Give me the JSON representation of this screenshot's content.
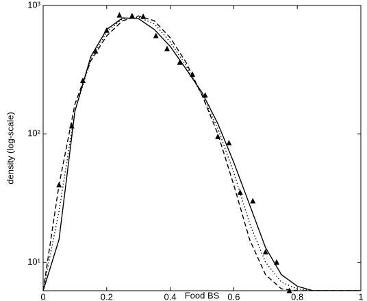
{
  "chart_data": {
    "type": "line",
    "xlabel": "Food BS",
    "ylabel": "density (log-scale)",
    "xlim": [
      0,
      1
    ],
    "xticks": [
      0,
      0.2,
      0.4,
      0.6,
      0.8,
      1
    ],
    "ylim": [
      6,
      1000
    ],
    "ylog": true,
    "yticks": [
      {
        "value": 10,
        "label": "10¹"
      },
      {
        "value": 100,
        "label": "10²"
      },
      {
        "value": 1000,
        "label": "10³"
      }
    ],
    "x": [
      0,
      0.05,
      0.1,
      0.15,
      0.2,
      0.25,
      0.3,
      0.35,
      0.4,
      0.45,
      0.5,
      0.55,
      0.6,
      0.65,
      0.7,
      0.75,
      0.8,
      0.85,
      0.9,
      0.95,
      1
    ],
    "series": [
      {
        "color": "#000000",
        "dash": "solid",
        "values": [
          6,
          15,
          150,
          400,
          650,
          800,
          790,
          650,
          480,
          320,
          210,
          120,
          60,
          28,
          13,
          8,
          6.5,
          6,
          6,
          6,
          6
        ]
      },
      {
        "color": "#000000",
        "dash": "dashed",
        "values": [
          6,
          40,
          170,
          370,
          580,
          760,
          830,
          760,
          560,
          360,
          200,
          100,
          40,
          15,
          8,
          6.2,
          6,
          6,
          6,
          6,
          6
        ]
      },
      {
        "color": "#000000",
        "dash": "dotted",
        "values": [
          6,
          25,
          150,
          380,
          620,
          790,
          810,
          720,
          520,
          340,
          200,
          110,
          50,
          20,
          10,
          7,
          6.2,
          6,
          6,
          6,
          6
        ]
      },
      {
        "type": "scatter",
        "color": "#000000",
        "marker": "triangle",
        "x": [
          0.05,
          0.09,
          0.125,
          0.165,
          0.2,
          0.24,
          0.28,
          0.315,
          0.355,
          0.39,
          0.43,
          0.47,
          0.51,
          0.55,
          0.585,
          0.62,
          0.66,
          0.7,
          0.735,
          0.775
        ],
        "values": [
          40,
          115,
          260,
          440,
          640,
          840,
          830,
          820,
          580,
          460,
          360,
          290,
          200,
          95,
          85,
          35,
          30,
          12,
          10,
          6
        ]
      }
    ]
  }
}
